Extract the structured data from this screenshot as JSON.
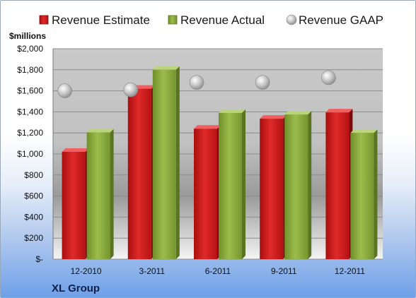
{
  "chart_data": {
    "type": "bar",
    "company": "XL Group",
    "ylabel": "$millions",
    "categories": [
      "12-2010",
      "3-2011",
      "6-2011",
      "9-2011",
      "12-2011"
    ],
    "series": [
      {
        "name": "Revenue Estimate",
        "kind": "bar",
        "color": "#d21f1f",
        "values": [
          1020,
          1620,
          1240,
          1335,
          1395
        ]
      },
      {
        "name": "Revenue Actual",
        "kind": "bar",
        "color": "#8fb23c",
        "values": [
          1205,
          1800,
          1390,
          1375,
          1200
        ]
      },
      {
        "name": "Revenue GAAP",
        "kind": "point",
        "color": "#c8c8c8",
        "values": [
          1600,
          1610,
          1680,
          1680,
          1725
        ]
      }
    ],
    "yticks": [
      "$-",
      "$200",
      "$400",
      "$600",
      "$800",
      "$1,000",
      "$1,200",
      "$1,400",
      "$1,600",
      "$1,800",
      "$2,000"
    ],
    "ylim": [
      0,
      2000
    ],
    "ystep": 200,
    "grid": true,
    "legend": "top"
  }
}
